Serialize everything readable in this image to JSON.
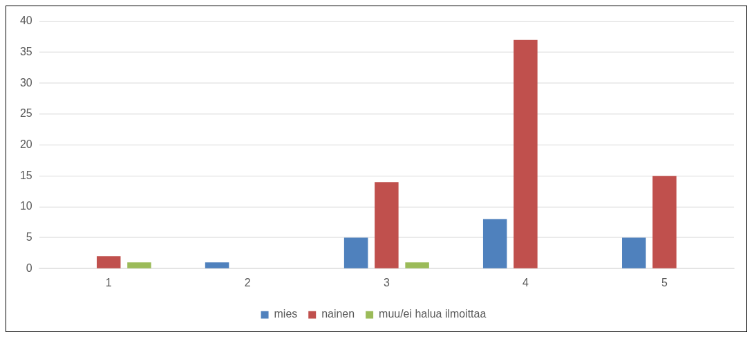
{
  "chart_data": {
    "type": "bar",
    "categories": [
      "1",
      "2",
      "3",
      "4",
      "5"
    ],
    "series": [
      {
        "name": "mies",
        "color": "#4f81bd",
        "values": [
          0,
          1,
          5,
          8,
          5
        ]
      },
      {
        "name": "nainen",
        "color": "#c0504d",
        "values": [
          2,
          0,
          14,
          37,
          15
        ]
      },
      {
        "name": "muu/ei halua ilmoittaa",
        "color": "#9bbb59",
        "values": [
          1,
          0,
          1,
          0,
          0
        ]
      }
    ],
    "ylim": [
      0,
      40
    ],
    "yticks": [
      0,
      5,
      10,
      15,
      20,
      25,
      30,
      35,
      40
    ],
    "grid": "y",
    "legend": "bottom"
  }
}
